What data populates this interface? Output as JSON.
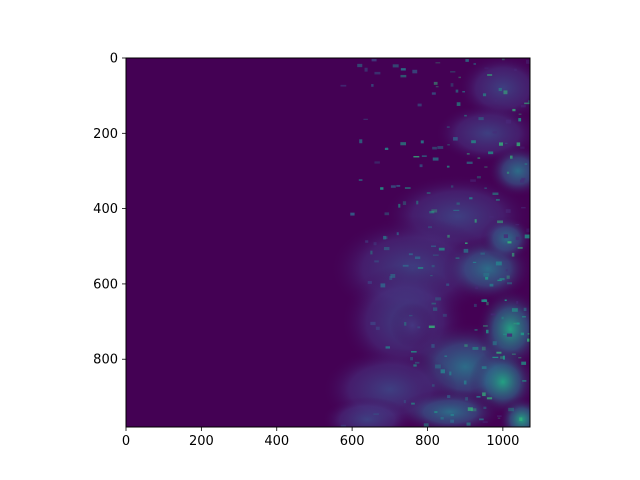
{
  "chart_data": {
    "type": "heatmap",
    "title": "",
    "xlabel": "",
    "ylabel": "",
    "xlim": [
      0,
      1072
    ],
    "ylim": [
      980,
      0
    ],
    "x_ticks": [
      0,
      200,
      400,
      600,
      800,
      1000
    ],
    "y_ticks": [
      0,
      200,
      400,
      600,
      800
    ],
    "y_inverted": true,
    "colormap": "viridis",
    "grid": false,
    "legend": "none",
    "colors": {
      "background": "#440154",
      "cloud_dark": "#46327e",
      "cloud_mid": "#365c8d",
      "cloud_light": "#1f9e89"
    }
  }
}
